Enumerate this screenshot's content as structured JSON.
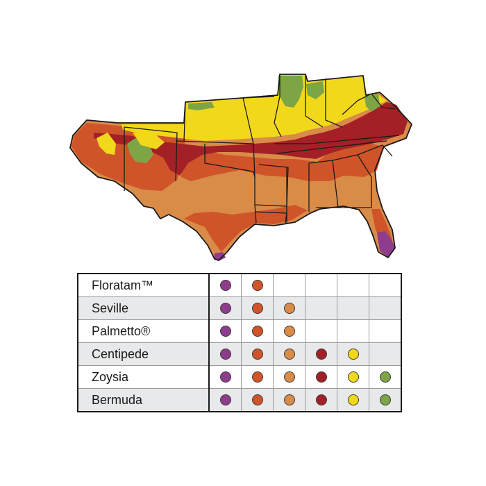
{
  "zone_colors": [
    "#8e3c8c",
    "#d0542a",
    "#d98b48",
    "#a32126",
    "#f2d81a",
    "#7da546"
  ],
  "map": {
    "ocean": "#ffffff",
    "state_line": "#1a1a1a"
  },
  "table": {
    "rows": [
      {
        "name": "Floratam™",
        "zones": [
          true,
          true,
          false,
          false,
          false,
          false
        ]
      },
      {
        "name": "Seville",
        "zones": [
          true,
          true,
          true,
          false,
          false,
          false
        ]
      },
      {
        "name": "Palmetto®",
        "zones": [
          true,
          true,
          true,
          false,
          false,
          false
        ]
      },
      {
        "name": "Centipede",
        "zones": [
          true,
          true,
          true,
          true,
          true,
          false
        ]
      },
      {
        "name": "Zoysia",
        "zones": [
          true,
          true,
          true,
          true,
          true,
          true
        ]
      },
      {
        "name": "Bermuda",
        "zones": [
          true,
          true,
          true,
          true,
          true,
          true
        ]
      }
    ]
  }
}
